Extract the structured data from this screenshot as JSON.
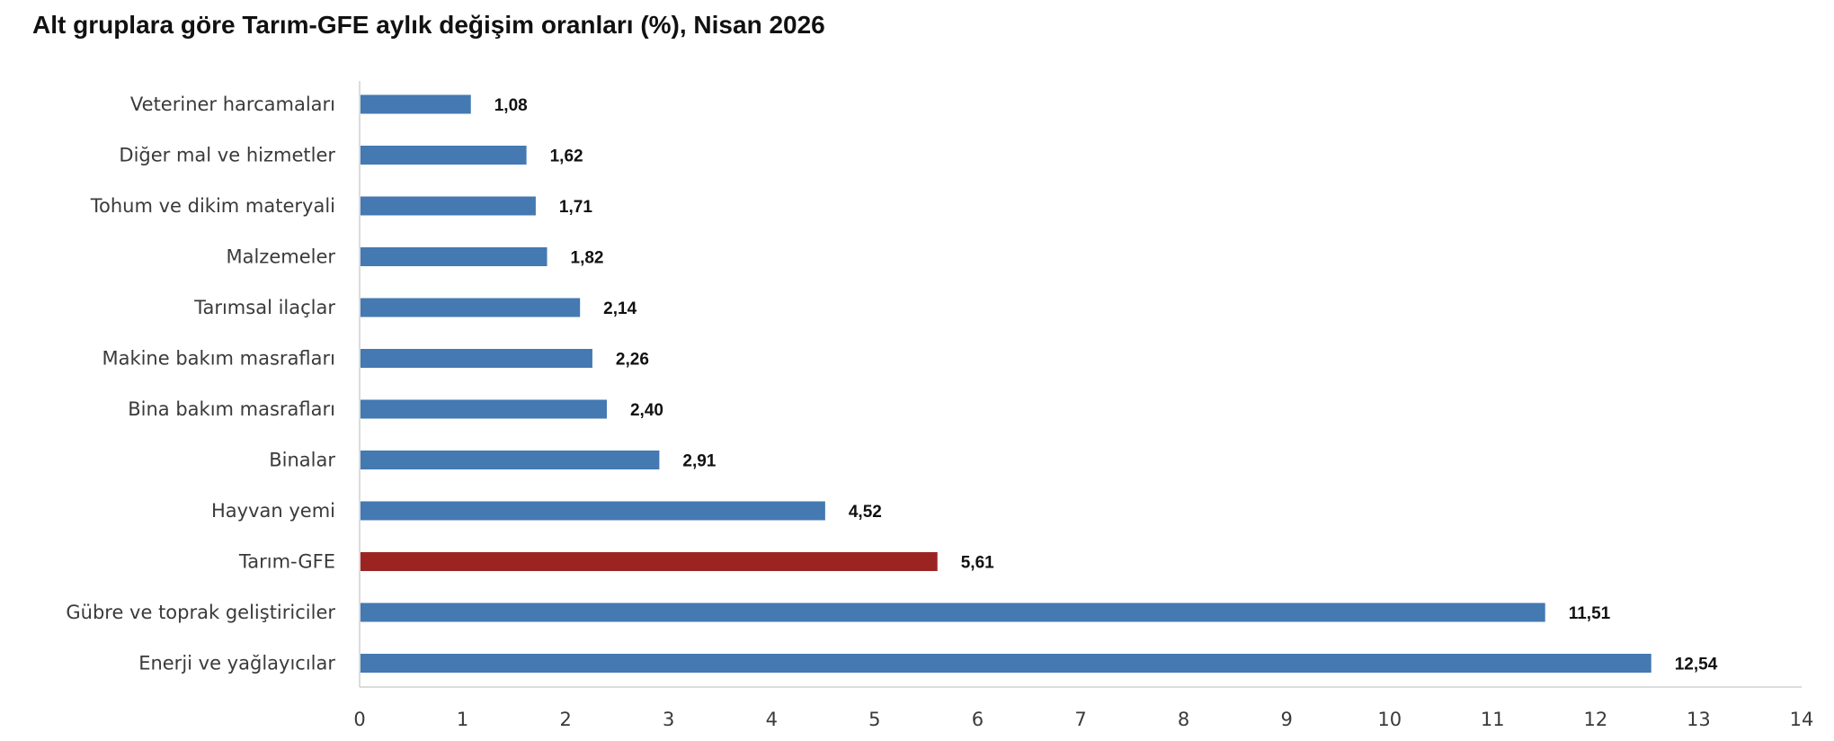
{
  "chart_data": {
    "type": "bar",
    "orientation": "horizontal",
    "title": "Alt gruplara göre Tarım-GFE aylık değişim oranları (%), Nisan 2026",
    "xlabel": "",
    "ylabel": "",
    "xlim": [
      0,
      14
    ],
    "xticks": [
      "0",
      "1",
      "2",
      "3",
      "4",
      "5",
      "6",
      "7",
      "8",
      "9",
      "10",
      "11",
      "12",
      "13",
      "14"
    ],
    "grid": false,
    "categories": [
      "Veteriner harcamaları",
      "Diğer mal ve hizmetler",
      "Tohum ve dikim materyali",
      "Malzemeler",
      "Tarımsal ilaçlar",
      "Makine bakım masrafları",
      "Bina bakım masrafları",
      "Binalar",
      "Hayvan yemi",
      "Tarım-GFE",
      "Gübre ve toprak geliştiriciler",
      "Enerji  ve yağlayıcılar"
    ],
    "values": [
      1.08,
      1.62,
      1.71,
      1.82,
      2.14,
      2.26,
      2.4,
      2.91,
      4.52,
      5.61,
      11.51,
      12.54
    ],
    "value_labels": [
      "1,08",
      "1,62",
      "1,71",
      "1,82",
      "2,14",
      "2,26",
      "2,40",
      "2,91",
      "4,52",
      "5,61",
      "11,51",
      "12,54"
    ],
    "colors": {
      "default": "#4479b2",
      "highlight": "#9b2423",
      "axis": "#d0d0d0"
    },
    "highlight_category": "Tarım-GFE"
  }
}
